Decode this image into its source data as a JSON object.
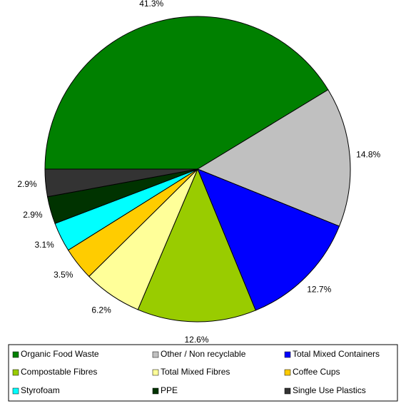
{
  "chart_data": {
    "type": "pie",
    "categories": [
      "Organic Food Waste",
      "Other / Non recyclable",
      "Total Mixed Containers",
      "Compostable Fibres",
      "Total Mixed Fibres",
      "Coffee Cups",
      "Styrofoam",
      "PPE",
      "Single Use Plastics"
    ],
    "values": [
      41.3,
      14.8,
      12.7,
      12.6,
      6.2,
      3.5,
      3.1,
      2.9,
      2.9
    ],
    "value_labels": [
      "41.3%",
      "14.8%",
      "12.7%",
      "12.6%",
      "6.2%",
      "3.5%",
      "3.1%",
      "2.9%",
      "2.9%"
    ],
    "colors": [
      "#008000",
      "#c0c0c0",
      "#0000ff",
      "#99cc00",
      "#ffff99",
      "#ffcc00",
      "#00ffff",
      "#003300",
      "#333333"
    ],
    "legend": "bottom"
  }
}
